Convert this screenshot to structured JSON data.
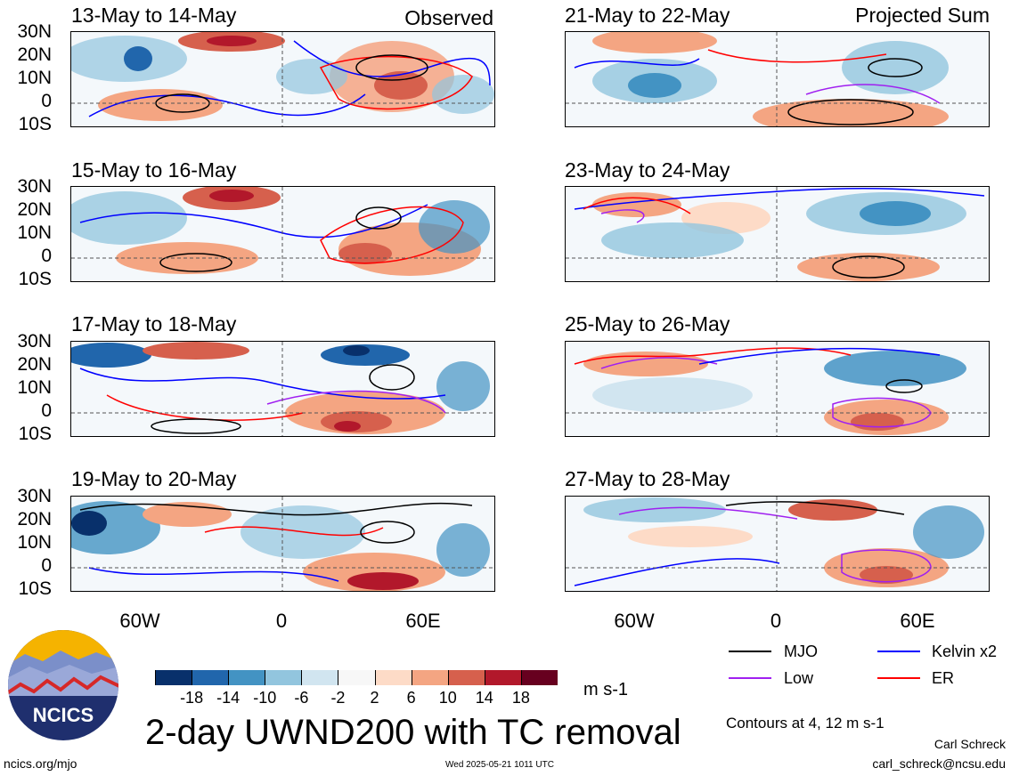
{
  "panels": [
    {
      "title": "13-May to 14-May",
      "corner": "Observed"
    },
    {
      "title": "21-May to 22-May",
      "corner": "Projected Sum"
    },
    {
      "title": "15-May to 16-May",
      "corner": ""
    },
    {
      "title": "23-May to 24-May",
      "corner": ""
    },
    {
      "title": "17-May to 18-May",
      "corner": ""
    },
    {
      "title": "25-May to 26-May",
      "corner": ""
    },
    {
      "title": "19-May to 20-May",
      "corner": ""
    },
    {
      "title": "27-May to 28-May",
      "corner": ""
    }
  ],
  "lat_labels": [
    "30N",
    "20N",
    "10N",
    "0",
    "10S"
  ],
  "lon_labels": [
    "60W",
    "0",
    "60E"
  ],
  "colorbar": {
    "colors": [
      "#08306b",
      "#2166ac",
      "#4393c3",
      "#92c5de",
      "#d1e5f0",
      "#f7f7f7",
      "#fddbc7",
      "#f4a582",
      "#d6604d",
      "#b2182b",
      "#67001f"
    ],
    "labels": [
      "-18",
      "-14",
      "-10",
      "-6",
      "-2",
      "2",
      "6",
      "10",
      "14",
      "18"
    ],
    "units": "m s-1"
  },
  "legend": {
    "mjo": {
      "label": "MJO",
      "color": "#000000"
    },
    "kelvin": {
      "label": "Kelvin x2",
      "color": "#0000ff"
    },
    "low": {
      "label": "Low",
      "color": "#a020f0"
    },
    "er": {
      "label": "ER",
      "color": "#ff0000"
    },
    "contours_note": "Contours at 4, 12 m s-1"
  },
  "title": "2-day UWND200 with TC removal",
  "logo_text": "NCICS",
  "footer": {
    "url": "ncics.org/mjo",
    "timestamp": "Wed 2025-05-21 1011 UTC",
    "author": "Carl Schreck",
    "email": "carl_schreck@ncsu.edu"
  }
}
